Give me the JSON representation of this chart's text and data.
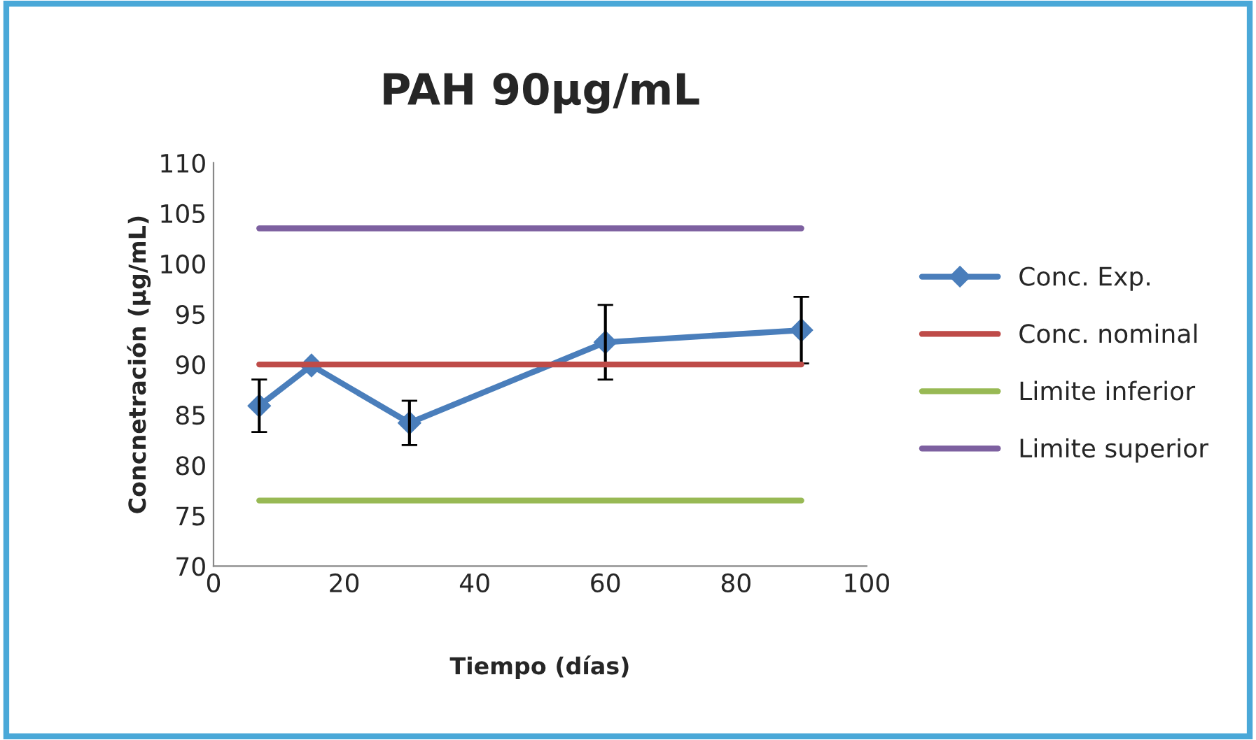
{
  "chart_data": {
    "type": "line",
    "title": "PAH 90µg/mL",
    "xlabel": "Tiempo (días)",
    "ylabel": "Concnetración (µg/mL)",
    "xlim": [
      0,
      100
    ],
    "xticks": [
      0,
      20,
      40,
      60,
      80,
      100
    ],
    "ylim": [
      70,
      110
    ],
    "yticks": [
      70,
      75,
      80,
      85,
      90,
      95,
      100,
      105,
      110
    ],
    "grid": false,
    "legend": "right",
    "series": [
      {
        "name": "Conc. Exp.",
        "color": "#4a7ebb",
        "x": [
          7,
          15,
          30,
          60,
          90
        ],
        "values": [
          85.9,
          89.9,
          84.2,
          92.2,
          93.4
        ],
        "errors": [
          2.6,
          null,
          2.2,
          3.7,
          3.3
        ],
        "marker": "diamond"
      },
      {
        "name": "Conc. nominal",
        "color": "#be4b48",
        "x": [
          7,
          90
        ],
        "values": [
          90,
          90
        ],
        "marker": "none"
      },
      {
        "name": "Limite inferior",
        "color": "#98b954",
        "x": [
          7,
          90
        ],
        "values": [
          76.5,
          76.5
        ],
        "marker": "none"
      },
      {
        "name": "Limite superior",
        "color": "#7d60a0",
        "x": [
          7,
          90
        ],
        "values": [
          103.5,
          103.5
        ],
        "marker": "none"
      }
    ]
  }
}
